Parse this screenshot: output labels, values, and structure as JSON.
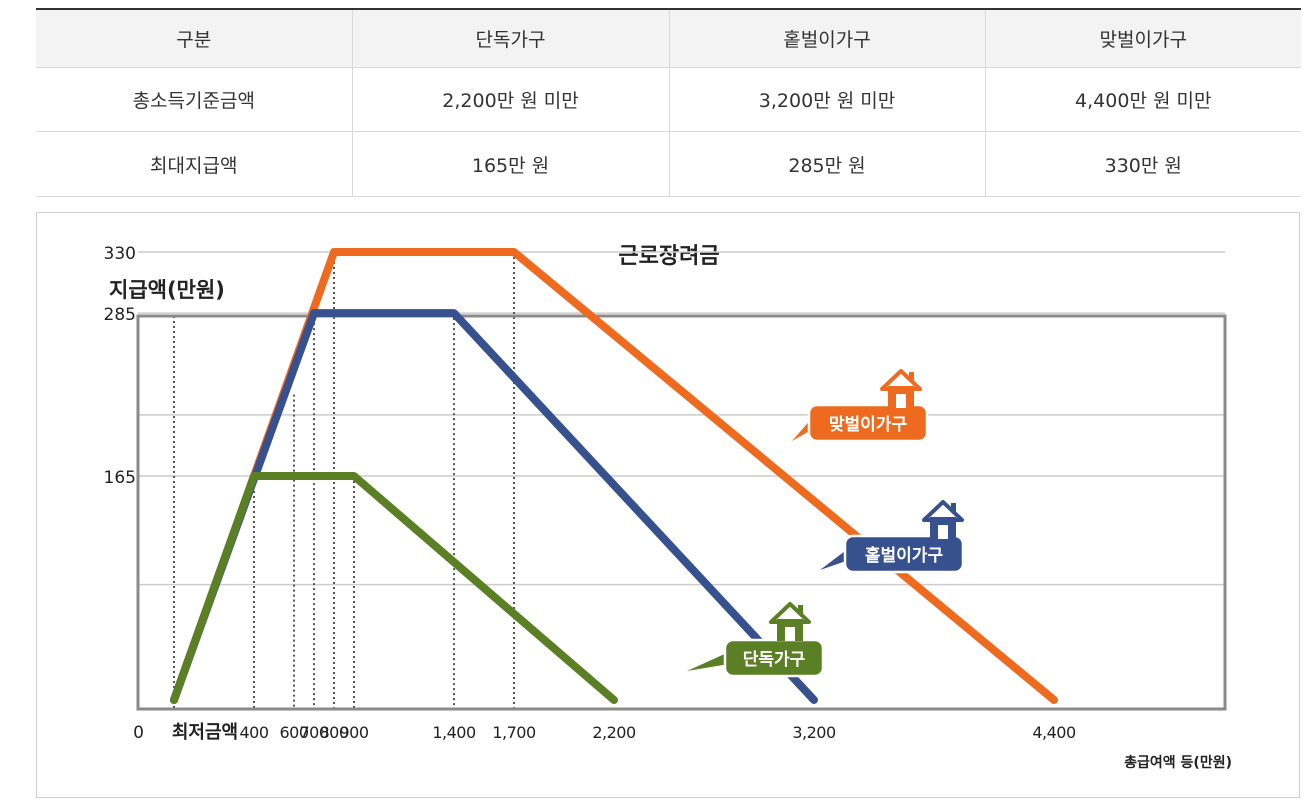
{
  "table": {
    "headers": [
      "구분",
      "단독가구",
      "홑벌이가구",
      "맞벌이가구"
    ],
    "rows": [
      [
        "총소득기준금액",
        "2,200만 원 미만",
        "3,200만 원 미만",
        "4,400만 원 미만"
      ],
      [
        "최대지급액",
        "165만 원",
        "285만 원",
        "330만 원"
      ]
    ]
  },
  "chart_data": {
    "type": "line",
    "title": "근로장려금",
    "ylabel": "지급액(만원)",
    "xlabel": "총급여액 등(만원)",
    "y_ticks": [
      0,
      165,
      285,
      330
    ],
    "x_ticks": [
      "최저금액",
      "400",
      "600",
      "700",
      "800",
      "900",
      "1,400",
      "1,700",
      "2,200",
      "3,200",
      "4,400"
    ],
    "xlim": [
      0,
      4400
    ],
    "ylim": [
      0,
      330
    ],
    "series": [
      {
        "name": "단독가구",
        "color": "#5b7f24",
        "x": [
          0,
          400,
          900,
          2200
        ],
        "y": [
          0,
          165,
          165,
          0
        ]
      },
      {
        "name": "홑벌이가구",
        "color": "#37508e",
        "x": [
          0,
          700,
          1400,
          3200
        ],
        "y": [
          0,
          285,
          285,
          0
        ]
      },
      {
        "name": "맞벌이가구",
        "color": "#ee6a1e",
        "x": [
          0,
          800,
          1700,
          4400
        ],
        "y": [
          0,
          330,
          330,
          0
        ]
      }
    ],
    "grid": true
  }
}
